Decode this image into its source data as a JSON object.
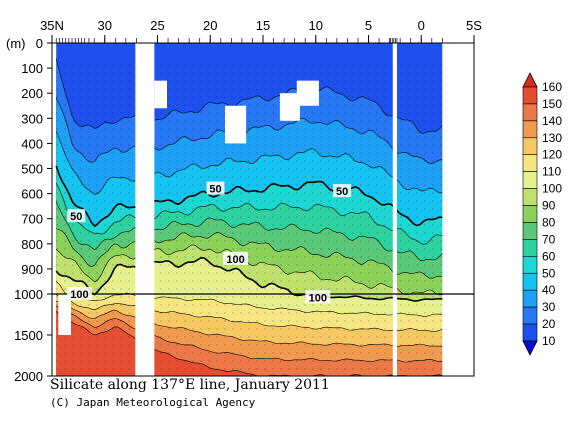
{
  "chart_data": {
    "type": "contour-section",
    "title": "Silicate along 137°E line, January 2011",
    "credit": "(C) Japan Meteorological Agency",
    "y_unit_label": "(m)",
    "x_ticks": [
      {
        "lat": 35,
        "label": "35N"
      },
      {
        "lat": 30,
        "label": "30"
      },
      {
        "lat": 25,
        "label": "25"
      },
      {
        "lat": 20,
        "label": "20"
      },
      {
        "lat": 15,
        "label": "15"
      },
      {
        "lat": 10,
        "label": "10"
      },
      {
        "lat": 5,
        "label": "5"
      },
      {
        "lat": 0,
        "label": "0"
      },
      {
        "lat": -5,
        "label": "5S"
      }
    ],
    "xlim": [
      35,
      -5
    ],
    "upper_panel_depths": [
      0,
      100,
      200,
      300,
      400,
      500,
      600,
      700,
      800,
      900,
      1000
    ],
    "lower_panel_depths": [
      1500,
      2000
    ],
    "ylim": [
      0,
      2000
    ],
    "depth_break": 1000,
    "colorbar": {
      "levels": [
        10,
        20,
        30,
        40,
        50,
        60,
        70,
        80,
        90,
        100,
        110,
        120,
        130,
        140,
        150,
        160
      ],
      "colors": [
        "#0a1ee6",
        "#1e50f0",
        "#2878f5",
        "#1ea0f5",
        "#14c3f0",
        "#1ed7d2",
        "#2dd2a0",
        "#5ac878",
        "#8cd25a",
        "#bee16e",
        "#e6f08c",
        "#f5e682",
        "#f5c864",
        "#f09a50",
        "#eb7846",
        "#e64e32",
        "#d22d1e"
      ],
      "underflow_color": "#0a0ad2",
      "overflow_color": "#d22d1e"
    },
    "contour_labels": [
      {
        "text": "50",
        "lat": 32.7,
        "depth": 690
      },
      {
        "text": "50",
        "lat": 19.5,
        "depth": 580
      },
      {
        "text": "50",
        "lat": 7.5,
        "depth": 590
      },
      {
        "text": "100",
        "lat": 17.6,
        "depth": 860
      },
      {
        "text": "100",
        "lat": 32.4,
        "depth": 1000
      },
      {
        "text": "100",
        "lat": 9.8,
        "depth": 1040
      }
    ],
    "missing_data_columns": [
      {
        "from": 27.1,
        "to": 25.3
      },
      {
        "from": 2.7,
        "to": 2.3
      }
    ],
    "missing_data_patches": [
      {
        "lat_from": 27.0,
        "lat_to": 25.3,
        "depth_from": 250,
        "depth_to": 400
      },
      {
        "lat_from": 25.3,
        "lat_to": 24.1,
        "depth_from": 150,
        "depth_to": 260
      },
      {
        "lat_from": 18.6,
        "lat_to": 16.6,
        "depth_from": 250,
        "depth_to": 400
      },
      {
        "lat_from": 13.4,
        "lat_to": 11.5,
        "depth_from": 200,
        "depth_to": 310
      },
      {
        "lat_from": 11.8,
        "lat_to": 9.7,
        "depth_from": 150,
        "depth_to": 250
      },
      {
        "lat_from": 34.4,
        "lat_to": 33.2,
        "depth_from": 1000,
        "depth_to": 1500
      }
    ],
    "station_lats": [
      34.6,
      34.3,
      34.0,
      33.7,
      33.4,
      33.1,
      32.8,
      32.5,
      32.2,
      31.9,
      31.5,
      31.0,
      30.0,
      29.0,
      28.0,
      27.0,
      25.0,
      24.0,
      23.0,
      22.0,
      21.0,
      20.0,
      19.0,
      18.0,
      17.0,
      16.0,
      15.0,
      14.0,
      13.0,
      12.0,
      11.0,
      10.0,
      9.0,
      8.0,
      7.0,
      6.0,
      5.0,
      4.0,
      3.0,
      2.9,
      2.75,
      2.6,
      2.45,
      2.3,
      2.0,
      1.0,
      0.0,
      -1.0,
      -2.0
    ],
    "data_extent": {
      "lat_from": 34.6,
      "lat_to": -2.0,
      "depth_to": 2000
    },
    "contour_levels": [
      20,
      30,
      40,
      50,
      60,
      70,
      80,
      90,
      100,
      110,
      120,
      130,
      140,
      150
    ],
    "bold_levels": [
      50,
      100
    ],
    "depth_profile_at_lat": [
      {
        "lat": 34.6,
        "d20": 80,
        "d50": 480,
        "d100": 900,
        "d150": 1200
      },
      {
        "lat": 33.0,
        "d20": 300,
        "d50": 640,
        "d100": 940,
        "d150": 1350
      },
      {
        "lat": 31.0,
        "d20": 350,
        "d50": 720,
        "d100": 1000,
        "d150": 1500
      },
      {
        "lat": 29.0,
        "d20": 300,
        "d50": 660,
        "d100": 900,
        "d150": 1400
      },
      {
        "lat": 25.0,
        "d20": 300,
        "d50": 640,
        "d100": 880,
        "d150": 1700
      },
      {
        "lat": 20.0,
        "d20": 250,
        "d50": 600,
        "d100": 870,
        "d150": 1900
      },
      {
        "lat": 15.0,
        "d20": 220,
        "d50": 580,
        "d100": 960,
        "d150": 2000
      },
      {
        "lat": 10.0,
        "d20": 180,
        "d50": 560,
        "d100": 1020,
        "d150": 2000
      },
      {
        "lat": 5.0,
        "d20": 230,
        "d50": 600,
        "d100": 1050,
        "d150": 2000
      },
      {
        "lat": 2.5,
        "d20": 290,
        "d50": 670,
        "d100": 1060,
        "d150": 2000
      },
      {
        "lat": 0.0,
        "d20": 350,
        "d50": 720,
        "d100": 1070,
        "d150": 2000
      },
      {
        "lat": -2.0,
        "d20": 340,
        "d50": 700,
        "d100": 1070,
        "d150": 2000
      }
    ],
    "grid": "dotted"
  }
}
